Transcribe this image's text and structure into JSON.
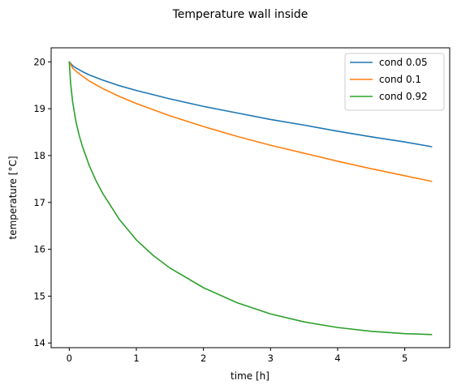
{
  "chart_data": {
    "type": "line",
    "title": "Temperature wall inside",
    "xlabel": "time [h]",
    "ylabel": "temperature [°C]",
    "xlim": [
      -0.27,
      5.67
    ],
    "ylim": [
      13.9,
      20.3
    ],
    "xticks": [
      0,
      1,
      2,
      3,
      4,
      5
    ],
    "yticks": [
      14,
      15,
      16,
      17,
      18,
      19,
      20
    ],
    "grid": false,
    "legend_position": "top-right",
    "series": [
      {
        "name": "cond 0.05",
        "color": "#1f77b4",
        "x": [
          0,
          0.05,
          0.1,
          0.2,
          0.3,
          0.5,
          0.75,
          1,
          1.5,
          2,
          2.5,
          3,
          3.5,
          4,
          4.5,
          5,
          5.4
        ],
        "y": [
          20.0,
          19.92,
          19.87,
          19.79,
          19.72,
          19.61,
          19.49,
          19.39,
          19.21,
          19.05,
          18.91,
          18.77,
          18.65,
          18.52,
          18.4,
          18.29,
          18.19
        ]
      },
      {
        "name": "cond 0.1",
        "color": "#ff7f0e",
        "x": [
          0,
          0.05,
          0.1,
          0.2,
          0.3,
          0.5,
          0.75,
          1,
          1.5,
          2,
          2.5,
          3,
          3.5,
          4,
          4.5,
          5,
          5.4
        ],
        "y": [
          20.0,
          19.87,
          19.8,
          19.69,
          19.59,
          19.43,
          19.26,
          19.11,
          18.85,
          18.62,
          18.41,
          18.22,
          18.05,
          17.88,
          17.72,
          17.57,
          17.45
        ]
      },
      {
        "name": "cond 0.92",
        "color": "#2ca02c",
        "x": [
          0,
          0.02,
          0.05,
          0.1,
          0.15,
          0.2,
          0.3,
          0.4,
          0.5,
          0.75,
          1,
          1.25,
          1.5,
          2,
          2.5,
          3,
          3.5,
          4,
          4.5,
          5,
          5.4
        ],
        "y": [
          20.0,
          19.55,
          19.15,
          18.72,
          18.42,
          18.18,
          17.78,
          17.46,
          17.19,
          16.63,
          16.2,
          15.87,
          15.6,
          15.18,
          14.86,
          14.62,
          14.45,
          14.33,
          14.25,
          14.2,
          14.18
        ]
      }
    ]
  }
}
